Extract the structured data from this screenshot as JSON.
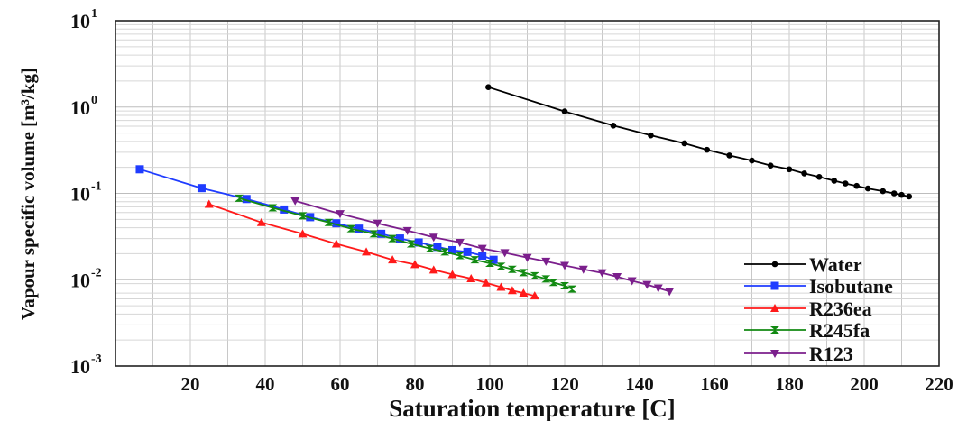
{
  "chart_data": {
    "type": "line",
    "xlabel": "Saturation temperature [C]",
    "ylabel": "Vapour specific volume [m³/kg]",
    "xlim": [
      0,
      220
    ],
    "ylim": [
      0.001,
      10
    ],
    "y_scale": "log",
    "grid": true,
    "legend_position": "bottom-right",
    "x_ticks": [
      "20",
      "40",
      "60",
      "80",
      "100",
      "120",
      "140",
      "160",
      "180",
      "200",
      "220"
    ],
    "y_ticks": [
      {
        "base": "10",
        "exp": "-3",
        "value": 0.001
      },
      {
        "base": "10",
        "exp": "-2",
        "value": 0.01
      },
      {
        "base": "10",
        "exp": "-1",
        "value": 0.1
      },
      {
        "base": "10",
        "exp": "0",
        "value": 1
      },
      {
        "base": "10",
        "exp": "1",
        "value": 10
      }
    ],
    "series": [
      {
        "name": "Water",
        "color": "#000000",
        "marker": "circle",
        "x": [
          99.6,
          120,
          133,
          143,
          152,
          158,
          164,
          170,
          175,
          180,
          184,
          188,
          192,
          195,
          198,
          201,
          205,
          208,
          210,
          212
        ],
        "y": [
          1.7,
          0.89,
          0.61,
          0.47,
          0.38,
          0.32,
          0.275,
          0.24,
          0.21,
          0.19,
          0.17,
          0.155,
          0.14,
          0.13,
          0.122,
          0.114,
          0.106,
          0.1,
          0.096,
          0.092
        ]
      },
      {
        "name": "Isobutane",
        "color": "#1f3cff",
        "marker": "square",
        "x": [
          6.5,
          23,
          35,
          45,
          52,
          59,
          65,
          71,
          76,
          81,
          86,
          90,
          94,
          98,
          101
        ],
        "y": [
          0.19,
          0.115,
          0.086,
          0.065,
          0.053,
          0.045,
          0.039,
          0.034,
          0.03,
          0.027,
          0.024,
          0.022,
          0.021,
          0.019,
          0.017
        ]
      },
      {
        "name": "R236ea",
        "color": "#ff1a1a",
        "marker": "triangle-up",
        "x": [
          25,
          39,
          50,
          59,
          67,
          74,
          80,
          85,
          90,
          95,
          99,
          103,
          106,
          109,
          112
        ],
        "y": [
          0.075,
          0.046,
          0.034,
          0.026,
          0.021,
          0.017,
          0.015,
          0.013,
          0.0115,
          0.0103,
          0.0092,
          0.0082,
          0.0075,
          0.007,
          0.0065
        ]
      },
      {
        "name": "R245fa",
        "color": "#128a12",
        "marker": "bowtie",
        "x": [
          33,
          42,
          50,
          57,
          63,
          69,
          74,
          79,
          84,
          88,
          92,
          96,
          100,
          103,
          106,
          109,
          112,
          115,
          117,
          120,
          122
        ],
        "y": [
          0.088,
          0.068,
          0.055,
          0.046,
          0.039,
          0.034,
          0.03,
          0.026,
          0.023,
          0.021,
          0.019,
          0.017,
          0.0155,
          0.0143,
          0.0132,
          0.0121,
          0.0111,
          0.0102,
          0.0093,
          0.0085,
          0.0078
        ]
      },
      {
        "name": "R123",
        "color": "#7b1f8c",
        "marker": "triangle-down",
        "x": [
          48,
          60,
          70,
          78,
          85,
          92,
          98,
          104,
          110,
          115,
          120,
          125,
          130,
          134,
          138,
          142,
          145,
          148
        ],
        "y": [
          0.082,
          0.058,
          0.045,
          0.037,
          0.031,
          0.027,
          0.023,
          0.0205,
          0.018,
          0.0163,
          0.0146,
          0.0132,
          0.012,
          0.0108,
          0.0097,
          0.0088,
          0.008,
          0.0073
        ]
      }
    ]
  }
}
